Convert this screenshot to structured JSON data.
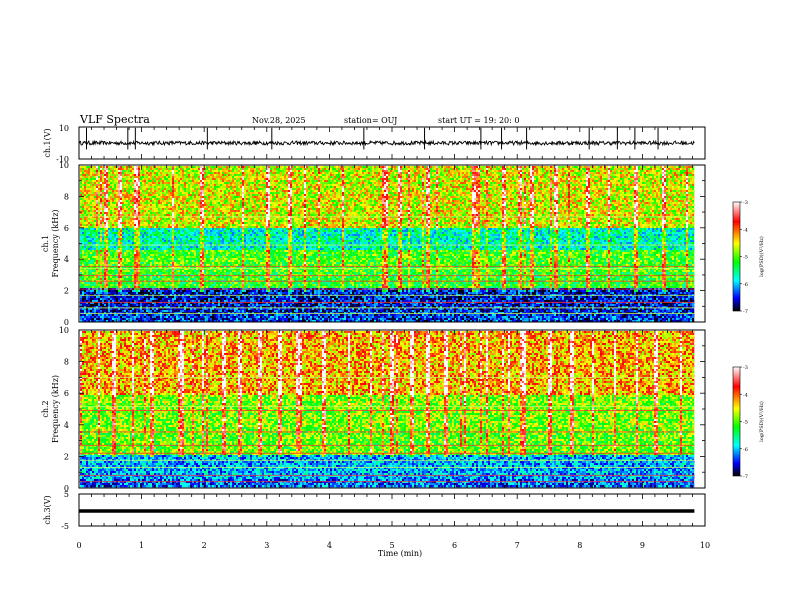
{
  "header": {
    "title": "VLF Spectra",
    "date": "Nov.28, 2025",
    "station": "station= OUJ",
    "start": "start  UT =   19: 20: 0"
  },
  "colorbar": {
    "label": "log(PSD)(V²/Hz)",
    "ticks": [
      "-3",
      "-4",
      "-5",
      "-6",
      "-7"
    ],
    "stops": [
      "#ffffff",
      "#ff0000",
      "#ffff00",
      "#00ff00",
      "#00ffff",
      "#0000ff",
      "#000000"
    ]
  },
  "chart_data": [
    {
      "type": "line",
      "name": "ch1-waveform",
      "ylabel": "ch.1(V)",
      "ylim": [
        -10,
        10
      ],
      "yticks": [
        "10",
        "-10"
      ],
      "baseline": 0,
      "noise_amplitude": 1.2,
      "spikes_x": [
        0.12,
        0.78,
        0.9,
        2.05,
        3.08,
        4.55,
        5.52,
        6.42,
        6.75,
        7.15,
        8.15,
        8.6,
        8.88,
        9.25
      ]
    },
    {
      "type": "heatmap",
      "name": "ch1-spectrogram",
      "ylabel": "ch.1\nFrequency (kHz)",
      "xlim": [
        0,
        9.83
      ],
      "ylim": [
        0,
        10
      ],
      "yticks": [
        "0",
        "2",
        "4",
        "6",
        "8",
        "10"
      ],
      "zlim": [
        -7,
        -3
      ],
      "bands": [
        {
          "f0": 0,
          "f1": 0.6,
          "level": -6.4
        },
        {
          "f0": 0.6,
          "f1": 2.2,
          "level": -6.5
        },
        {
          "f0": 2.2,
          "f1": 3.3,
          "level": -5.0
        },
        {
          "f0": 3.3,
          "f1": 4.6,
          "level": -4.9
        },
        {
          "f0": 4.6,
          "f1": 6.0,
          "level": -5.6
        },
        {
          "f0": 6.0,
          "f1": 10,
          "level": -4.4
        }
      ],
      "lines_khz": [
        0.55,
        0.9,
        1.25,
        1.7,
        2.1,
        2.6,
        2.95,
        3.4,
        3.55,
        4.9,
        6.7
      ],
      "burst_times": [
        0.42,
        0.63,
        0.9,
        1.48,
        1.95,
        2.6,
        3.0,
        3.35,
        3.6,
        4.2,
        4.88,
        5.12,
        5.55,
        6.3,
        6.78,
        7.05,
        7.22,
        7.6,
        8.12,
        8.45,
        8.88,
        9.33,
        9.7
      ]
    },
    {
      "type": "heatmap",
      "name": "ch2-spectrogram",
      "ylabel": "ch.2\nFrequency (kHz)",
      "xlim": [
        0,
        9.83
      ],
      "ylim": [
        0,
        10
      ],
      "yticks": [
        "0",
        "2",
        "4",
        "6",
        "8",
        "10"
      ],
      "zlim": [
        -7,
        -3
      ],
      "bands": [
        {
          "f0": 0,
          "f1": 0.6,
          "level": -6.2
        },
        {
          "f0": 0.6,
          "f1": 2.2,
          "level": -6.0
        },
        {
          "f0": 2.2,
          "f1": 3.6,
          "level": -4.8
        },
        {
          "f0": 3.6,
          "f1": 6.0,
          "level": -4.7
        },
        {
          "f0": 6.0,
          "f1": 10,
          "level": -4.1
        }
      ],
      "lines_khz": [
        0.4,
        0.8,
        1.3,
        1.75,
        2.2,
        2.7,
        3.55,
        4.9,
        5.15,
        7.0
      ],
      "burst_times": [
        0.3,
        0.55,
        0.85,
        1.15,
        1.62,
        1.96,
        2.3,
        2.55,
        2.88,
        3.2,
        3.48,
        3.9,
        4.3,
        4.65,
        4.98,
        5.3,
        5.55,
        5.84,
        6.15,
        6.5,
        6.85,
        7.1,
        7.5,
        7.85,
        8.2,
        8.55,
        8.9,
        9.2,
        9.6
      ]
    },
    {
      "type": "line",
      "name": "ch3-waveform",
      "ylabel": "ch.3(V)",
      "ylim": [
        -5,
        5
      ],
      "yticks": [
        "5",
        "0",
        "-5"
      ],
      "baseline": -0.3
    }
  ],
  "xaxis": {
    "label": "Time (min)",
    "ticks": [
      "0",
      "1",
      "2",
      "3",
      "4",
      "5",
      "6",
      "7",
      "8",
      "9",
      "10"
    ],
    "range": [
      0,
      10
    ]
  }
}
